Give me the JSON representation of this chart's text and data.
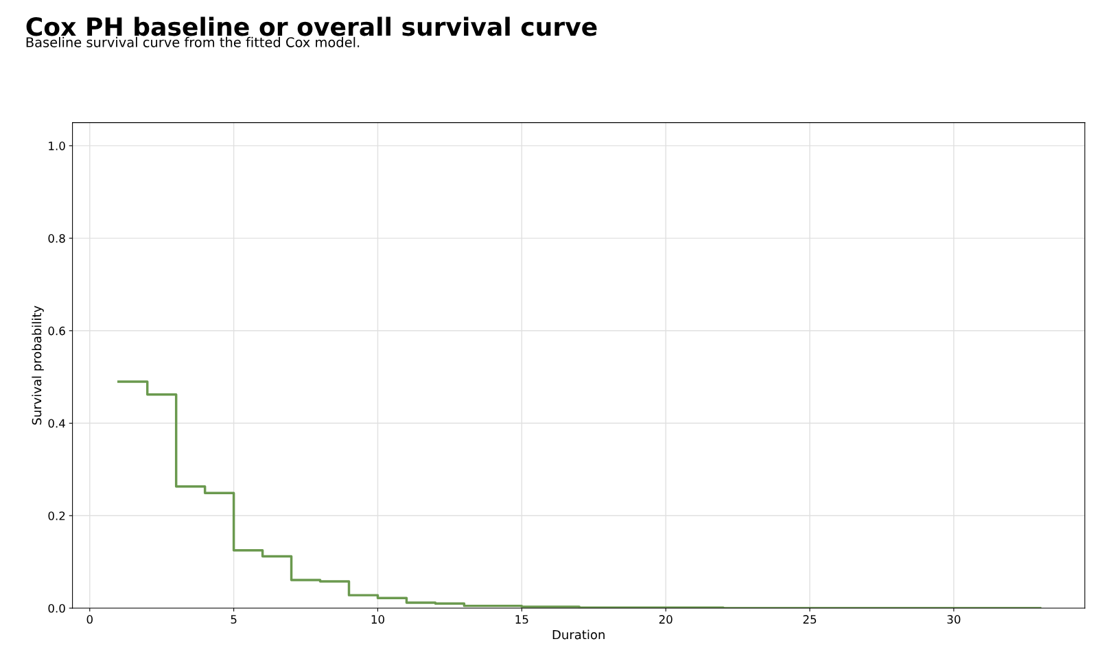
{
  "chart_data": {
    "type": "step",
    "title": "Cox PH baseline or overall survival curve",
    "subtitle": "Baseline survival curve from the fitted Cox model.",
    "xlabel": "Duration",
    "ylabel": "Survival probability",
    "series": [
      {
        "color": "#6a994e",
        "x": [
          1,
          2,
          3,
          4,
          5,
          6,
          7,
          8,
          9,
          10,
          11,
          12,
          13,
          15,
          17,
          22,
          33
        ],
        "values": [
          0.49,
          0.462,
          0.263,
          0.249,
          0.125,
          0.112,
          0.061,
          0.058,
          0.028,
          0.022,
          0.012,
          0.01,
          0.005,
          0.003,
          0.001,
          0.0,
          0.0
        ]
      }
    ],
    "xlim": [
      -0.6,
      34.55
    ],
    "xticks": [
      0,
      5,
      10,
      15,
      20,
      25,
      30
    ],
    "ylim": [
      0,
      1.05
    ],
    "yticks": [
      {
        "value": 0,
        "label": "0.0"
      },
      {
        "value": 0.2,
        "label": "0.2"
      },
      {
        "value": 0.4,
        "label": "0.4"
      },
      {
        "value": 0.6,
        "label": "0.6"
      },
      {
        "value": 0.8,
        "label": "0.8"
      },
      {
        "value": 1,
        "label": "1.0"
      }
    ],
    "grid": true
  }
}
